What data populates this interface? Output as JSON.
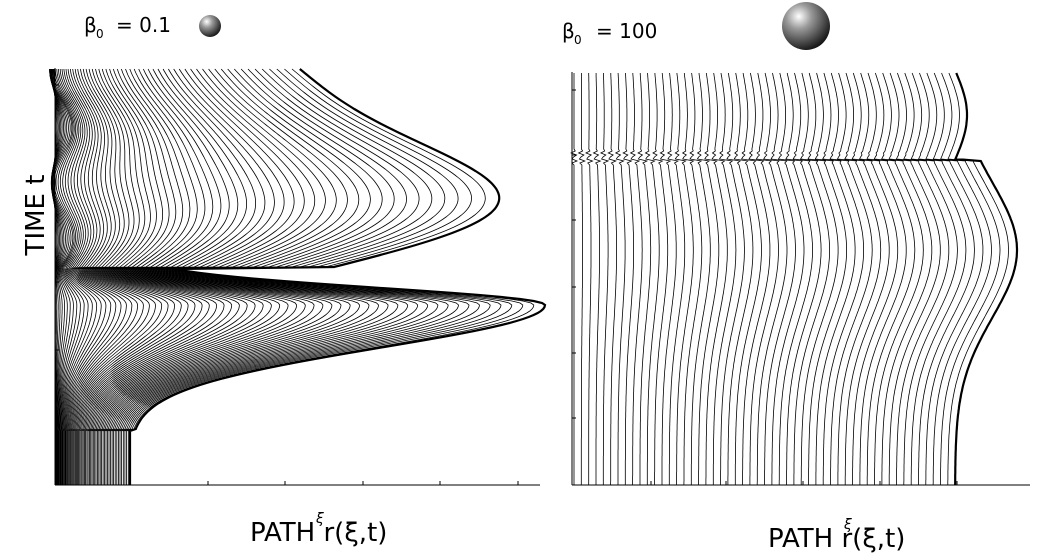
{
  "y_label": "TIME t",
  "panels": [
    {
      "symbol": "β",
      "subscript": "0",
      "value": "= 0.1",
      "x_label": "PATH r(ξ,t)",
      "overlay": "ξ"
    },
    {
      "symbol": "β",
      "subscript": "0",
      "value": "= 100",
      "x_label": "PATH r(ξ,t)",
      "overlay": "ξ"
    }
  ]
}
